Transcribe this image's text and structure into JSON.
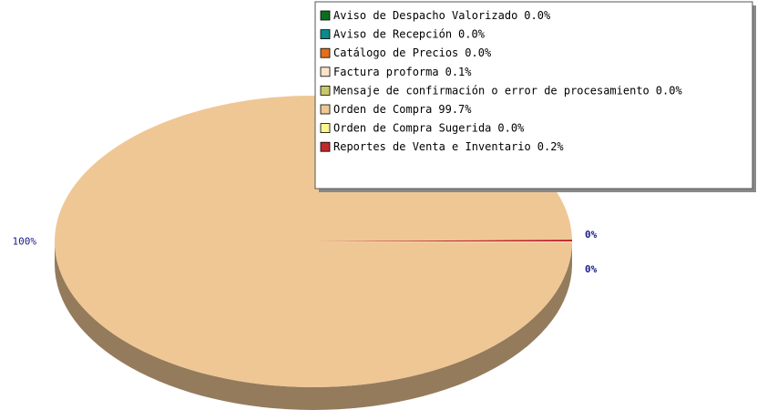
{
  "chart_data": {
    "type": "pie",
    "categories": [
      "Aviso de Despacho Valorizado",
      "Aviso de Recepción",
      "Catálogo de Precios",
      "Factura proforma",
      "Mensaje de confirmación o error de procesamiento",
      "Orden de Compra",
      "Orden de Compra Sugerida",
      "Reportes de Venta e Inventario"
    ],
    "values": [
      0.0,
      0.0,
      0.0,
      0.1,
      0.0,
      99.7,
      0.0,
      0.2
    ],
    "value_labels": [
      "0.0%",
      "0.0%",
      "0.0%",
      "0.1%",
      "0.0%",
      "99.7%",
      "0.0%",
      "0.2%"
    ],
    "data_labels": [
      null,
      null,
      null,
      "0%",
      null,
      "100%",
      null,
      "0%"
    ],
    "colors": [
      "#0a6e1e",
      "#0e8a8a",
      "#e0701e",
      "#fde2c6",
      "#c8c86a",
      "#efc795",
      "#fbf78c",
      "#c0282c"
    ],
    "legend": "upper right"
  }
}
